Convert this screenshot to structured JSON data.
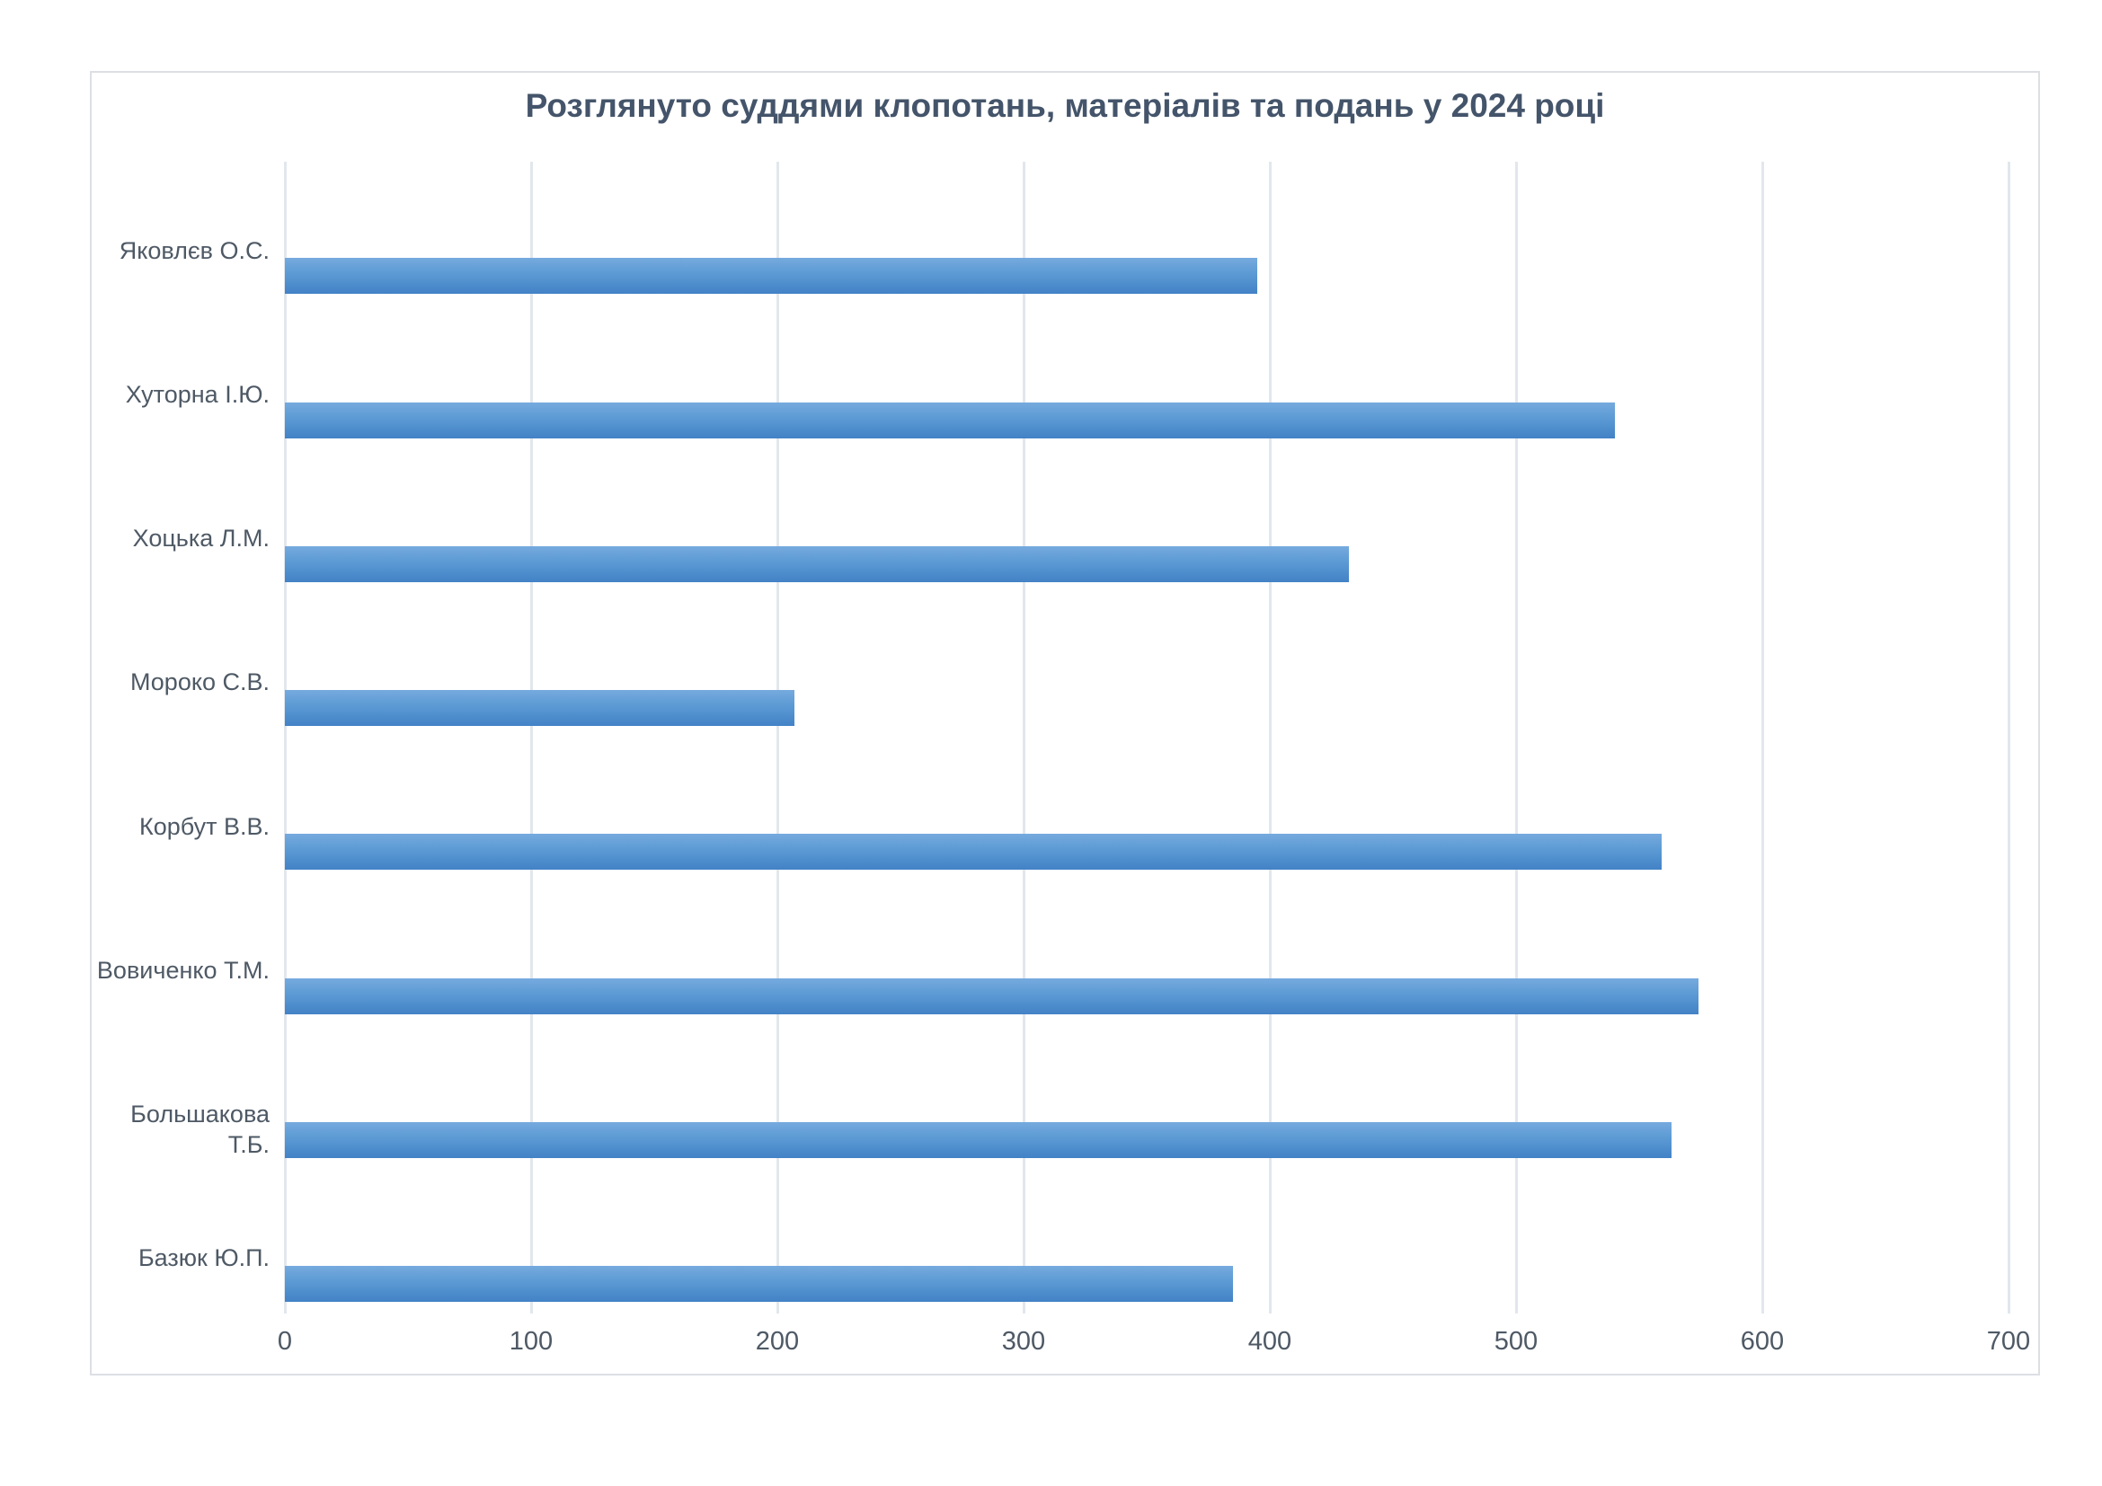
{
  "page": {
    "background": "#ffffff"
  },
  "chart_data": {
    "type": "bar",
    "orientation": "horizontal",
    "title": "Розглянуто суддями клопотань, матеріалів та подань у 2024 році",
    "categories": [
      "Яковлєв О.С.",
      "Хуторна І.Ю.",
      "Хоцька Л.М.",
      "Мороко С.В.",
      "Корбут В.В.",
      "Вовиченко Т.М.",
      "Большакова Т.Б.",
      "Базюк Ю.П."
    ],
    "values": [
      395,
      540,
      432,
      207,
      559,
      574,
      563,
      385
    ],
    "xlabel": "",
    "ylabel": "",
    "xlim": [
      0,
      700
    ],
    "x_ticks": [
      0,
      100,
      200,
      300,
      400,
      500,
      600,
      700
    ],
    "grid": true,
    "legend": "none",
    "colors": {
      "title": "#44546A",
      "axis_labels": "#4e5965",
      "bar_top": "#76aade",
      "bar_bottom": "#4282c6",
      "gridline": "#e2e7ed",
      "frame_border": "#dcdfe4"
    }
  }
}
